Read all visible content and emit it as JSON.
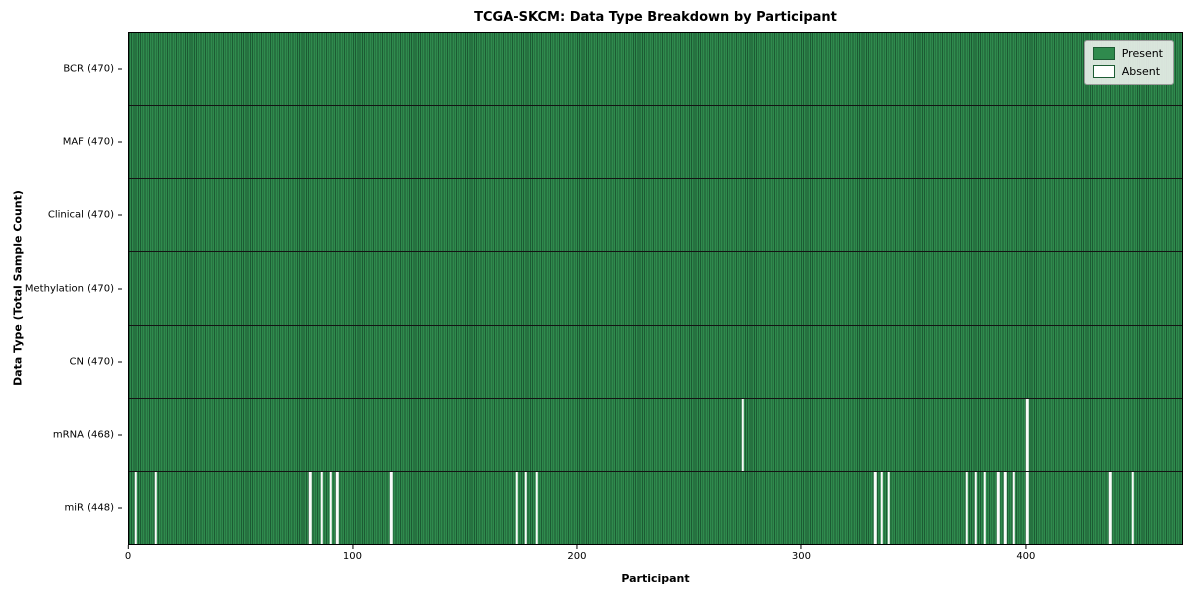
{
  "title": "TCGA-SKCM: Data Type Breakdown by Participant",
  "xlabel": "Participant",
  "ylabel": "Data Type (Total Sample Count)",
  "legend": {
    "present_label": "Present",
    "absent_label": "Absent"
  },
  "colors": {
    "present": "#2f8a4d",
    "bar_edge": "#1c5b33",
    "absent": "#fafafa",
    "row_divider": "#141414",
    "legend_edge": "#1c5b33"
  },
  "chart_data": {
    "type": "heatmap",
    "title": "TCGA-SKCM: Data Type Breakdown by Participant",
    "xlabel": "Participant",
    "ylabel": "Data Type (Total Sample Count)",
    "legend_entries": [
      "Present",
      "Absent"
    ],
    "legend_position": "upper right",
    "x_range": [
      0,
      470
    ],
    "x_ticks": [
      0,
      100,
      200,
      300,
      400
    ],
    "n_participants": 470,
    "rows": [
      {
        "label": "BCR (470)",
        "data_type": "BCR",
        "present_count": 470,
        "absent_x": []
      },
      {
        "label": "MAF (470)",
        "data_type": "MAF",
        "present_count": 470,
        "absent_x": []
      },
      {
        "label": "Clinical (470)",
        "data_type": "Clinical",
        "present_count": 470,
        "absent_x": []
      },
      {
        "label": "Methylation (470)",
        "data_type": "Methylation",
        "present_count": 470,
        "absent_x": []
      },
      {
        "label": "CN (470)",
        "data_type": "CN",
        "present_count": 470,
        "absent_x": []
      },
      {
        "label": "mRNA (468)",
        "data_type": "mRNA",
        "present_count": 468,
        "absent_x": [
          274,
          401
        ]
      },
      {
        "label": "miR (448)",
        "data_type": "miR",
        "present_count": 448,
        "absent_x": [
          3,
          12,
          81,
          86,
          90,
          93,
          117,
          173,
          177,
          182,
          333,
          336,
          339,
          374,
          378,
          382,
          388,
          391,
          395,
          401,
          438,
          448
        ]
      }
    ]
  }
}
